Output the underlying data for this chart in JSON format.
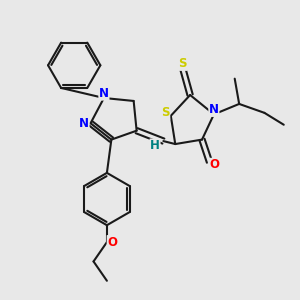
{
  "bg_color": "#e8e8e8",
  "bond_color": "#1a1a1a",
  "S_color": "#cccc00",
  "N_color": "#0000ff",
  "O_color": "#ff0000",
  "H_color": "#008080",
  "figsize": [
    3.0,
    3.0
  ],
  "dpi": 100,
  "xlim": [
    0,
    10
  ],
  "ylim": [
    0,
    10
  ]
}
